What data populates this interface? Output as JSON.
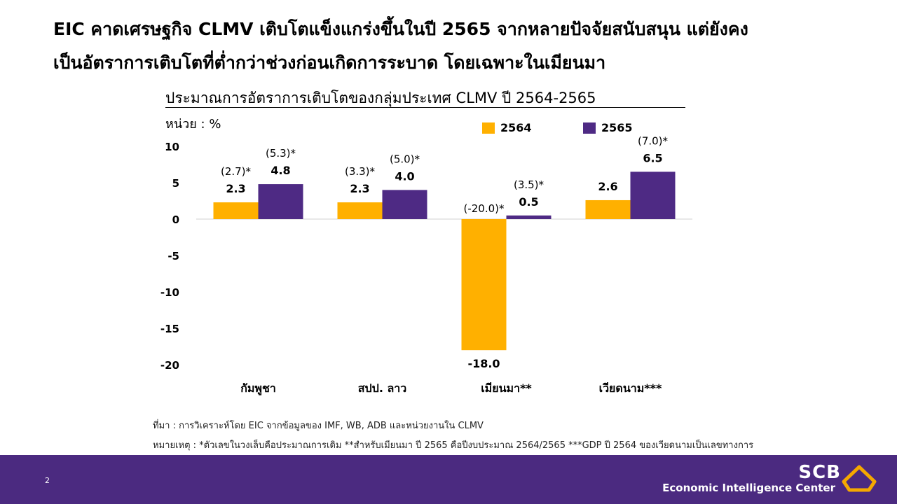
{
  "headline": {
    "line1": "EIC คาดเศรษฐกิจ CLMV เติบโตแข็งแกร่งขึ้นในปี 2565 จากหลายปัจจัยสนับสนุน แต่ยังคง",
    "line2": "เป็นอัตราการเติบโตที่ต่ำกว่าช่วงก่อนเกิดการระบาด โดยเฉพาะในเมียนมา"
  },
  "colors": {
    "series_2564": "#ffb000",
    "series_2565": "#4e2a84",
    "footer": "#4b2a80",
    "logo": "#f5a800"
  },
  "chart_data": {
    "type": "bar",
    "title": "ประมาณการอัตราการเติบโตของกลุ่มประเทศ CLMV ปี 2564-2565",
    "unit": "หน่วย : %",
    "categories": [
      "กัมพูชา",
      "สปป. ลาว",
      "เมียนมา**",
      "เวียดนาม***"
    ],
    "series": [
      {
        "name": "2564",
        "values": [
          2.3,
          2.3,
          -18.0,
          2.6
        ],
        "value_labels": [
          "2.3",
          "2.3",
          "-18.0",
          "2.6"
        ],
        "previous_estimates": [
          "(2.7)*",
          "(3.3)*",
          "(-20.0)*",
          ""
        ]
      },
      {
        "name": "2565",
        "values": [
          4.8,
          4.0,
          0.5,
          6.5
        ],
        "value_labels": [
          "4.8",
          "4.0",
          "0.5",
          "6.5"
        ],
        "previous_estimates": [
          "(5.3)*",
          "(5.0)*",
          "(3.5)*",
          "(7.0)*"
        ]
      }
    ],
    "ylim": [
      -20,
      10
    ],
    "yticks": [
      10,
      5,
      0,
      -5,
      -10,
      -15,
      -20
    ],
    "ytick_labels": [
      "10",
      "5",
      "0",
      "-5",
      "-10",
      "-15",
      "-20"
    ],
    "legend_position": "top-right",
    "grid": false
  },
  "footnotes": {
    "source": "ที่มา : การวิเคราะห์โดย EIC จากข้อมูลของ IMF, WB, ADB และหน่วยงานใน CLMV",
    "note": "หมายเหตุ : *ตัวเลขในวงเล็บคือประมาณการเดิม **สำหรับเมียนมา ปี 2565 คือปีงบประมาณ 2564/2565 ***GDP ปี 2564 ของเวียดนามเป็นเลขทางการ"
  },
  "footer": {
    "page_number": "2",
    "brand": "SCB",
    "brand_subtitle": "Economic Intelligence Center"
  }
}
